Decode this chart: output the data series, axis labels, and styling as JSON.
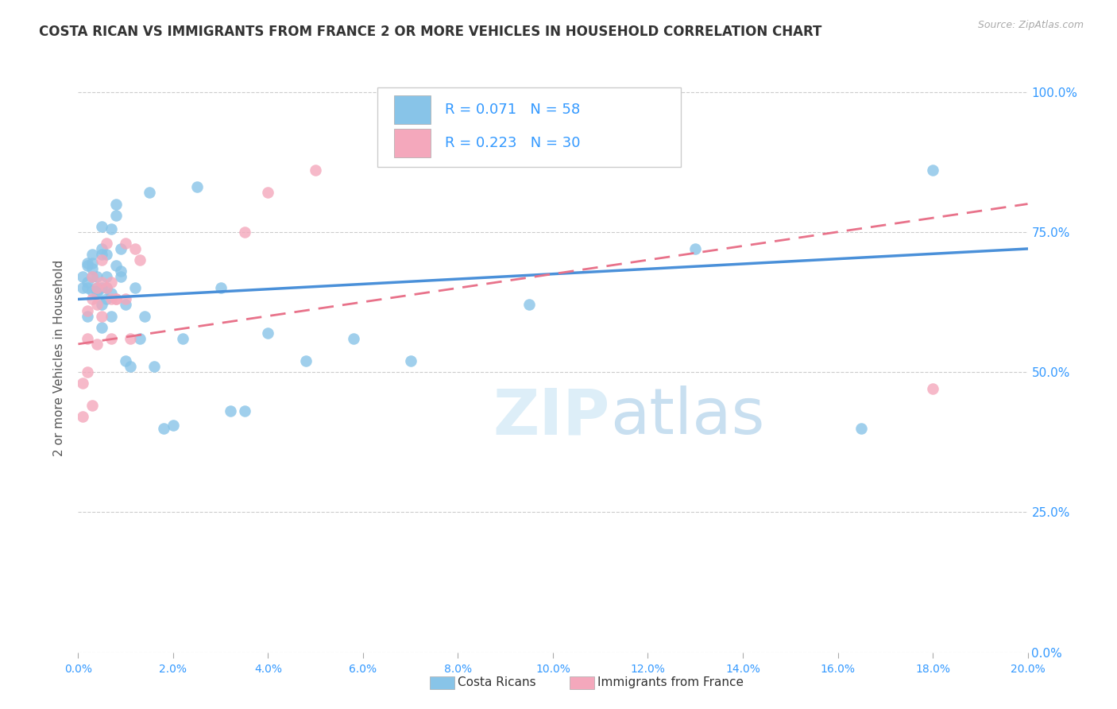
{
  "title": "COSTA RICAN VS IMMIGRANTS FROM FRANCE 2 OR MORE VEHICLES IN HOUSEHOLD CORRELATION CHART",
  "source": "Source: ZipAtlas.com",
  "ylabel_label": "2 or more Vehicles in Household",
  "legend_label1": "Costa Ricans",
  "legend_label2": "Immigrants from France",
  "R1": "0.071",
  "N1": "58",
  "R2": "0.223",
  "N2": "30",
  "color_blue": "#88c4e8",
  "color_pink": "#f4a8bc",
  "color_blue_line": "#4a90d9",
  "color_pink_line": "#e8728a",
  "watermark_color": "#ddeef8",
  "blue_x": [
    0.001,
    0.001,
    0.002,
    0.002,
    0.002,
    0.002,
    0.002,
    0.003,
    0.003,
    0.003,
    0.003,
    0.003,
    0.004,
    0.004,
    0.004,
    0.004,
    0.005,
    0.005,
    0.005,
    0.005,
    0.005,
    0.005,
    0.006,
    0.006,
    0.006,
    0.006,
    0.007,
    0.007,
    0.007,
    0.008,
    0.008,
    0.008,
    0.009,
    0.009,
    0.009,
    0.01,
    0.01,
    0.011,
    0.012,
    0.013,
    0.014,
    0.015,
    0.016,
    0.018,
    0.02,
    0.022,
    0.025,
    0.03,
    0.032,
    0.035,
    0.04,
    0.048,
    0.058,
    0.07,
    0.095,
    0.13,
    0.165,
    0.18
  ],
  "blue_y": [
    65.0,
    67.0,
    69.5,
    69.0,
    66.0,
    60.0,
    65.0,
    67.0,
    64.5,
    71.0,
    69.5,
    68.5,
    64.5,
    65.0,
    67.0,
    64.0,
    58.0,
    71.0,
    65.0,
    62.0,
    72.0,
    76.0,
    67.0,
    65.0,
    71.0,
    63.0,
    60.0,
    75.5,
    64.0,
    80.0,
    78.0,
    69.0,
    67.0,
    72.0,
    68.0,
    52.0,
    62.0,
    51.0,
    65.0,
    56.0,
    60.0,
    82.0,
    51.0,
    40.0,
    40.5,
    56.0,
    83.0,
    65.0,
    43.0,
    43.0,
    57.0,
    52.0,
    56.0,
    52.0,
    62.0,
    72.0,
    40.0,
    86.0
  ],
  "pink_x": [
    0.001,
    0.001,
    0.002,
    0.002,
    0.002,
    0.003,
    0.003,
    0.003,
    0.004,
    0.004,
    0.004,
    0.005,
    0.005,
    0.005,
    0.006,
    0.006,
    0.007,
    0.007,
    0.007,
    0.008,
    0.008,
    0.01,
    0.01,
    0.011,
    0.012,
    0.013,
    0.035,
    0.04,
    0.05,
    0.18
  ],
  "pink_y": [
    42.0,
    48.0,
    61.0,
    56.0,
    50.0,
    44.0,
    67.0,
    63.0,
    55.0,
    65.0,
    62.0,
    60.0,
    66.0,
    70.0,
    73.0,
    65.0,
    66.0,
    63.0,
    56.0,
    63.0,
    63.0,
    73.0,
    63.0,
    56.0,
    72.0,
    70.0,
    75.0,
    82.0,
    86.0,
    47.0
  ],
  "blue_trend_x": [
    0.0,
    0.2
  ],
  "blue_trend_y": [
    63.0,
    72.0
  ],
  "pink_trend_x": [
    0.0,
    0.2
  ],
  "pink_trend_y": [
    55.0,
    80.0
  ],
  "xlim": [
    0.0,
    0.2
  ],
  "ylim": [
    0.0,
    105.0
  ],
  "x_ticks": [
    0.0,
    0.02,
    0.04,
    0.06,
    0.08,
    0.1,
    0.12,
    0.14,
    0.16,
    0.18,
    0.2
  ],
  "x_tick_labels": [
    "0.0%",
    "2.0%",
    "4.0%",
    "6.0%",
    "8.0%",
    "10.0%",
    "12.0%",
    "14.0%",
    "16.0%",
    "18.0%",
    "20.0%"
  ],
  "y_ticks": [
    0.0,
    25.0,
    50.0,
    75.0,
    100.0
  ],
  "y_tick_labels": [
    "0.0%",
    "25.0%",
    "50.0%",
    "75.0%",
    "100.0%"
  ],
  "grid_color": "#cccccc",
  "background": "#ffffff"
}
